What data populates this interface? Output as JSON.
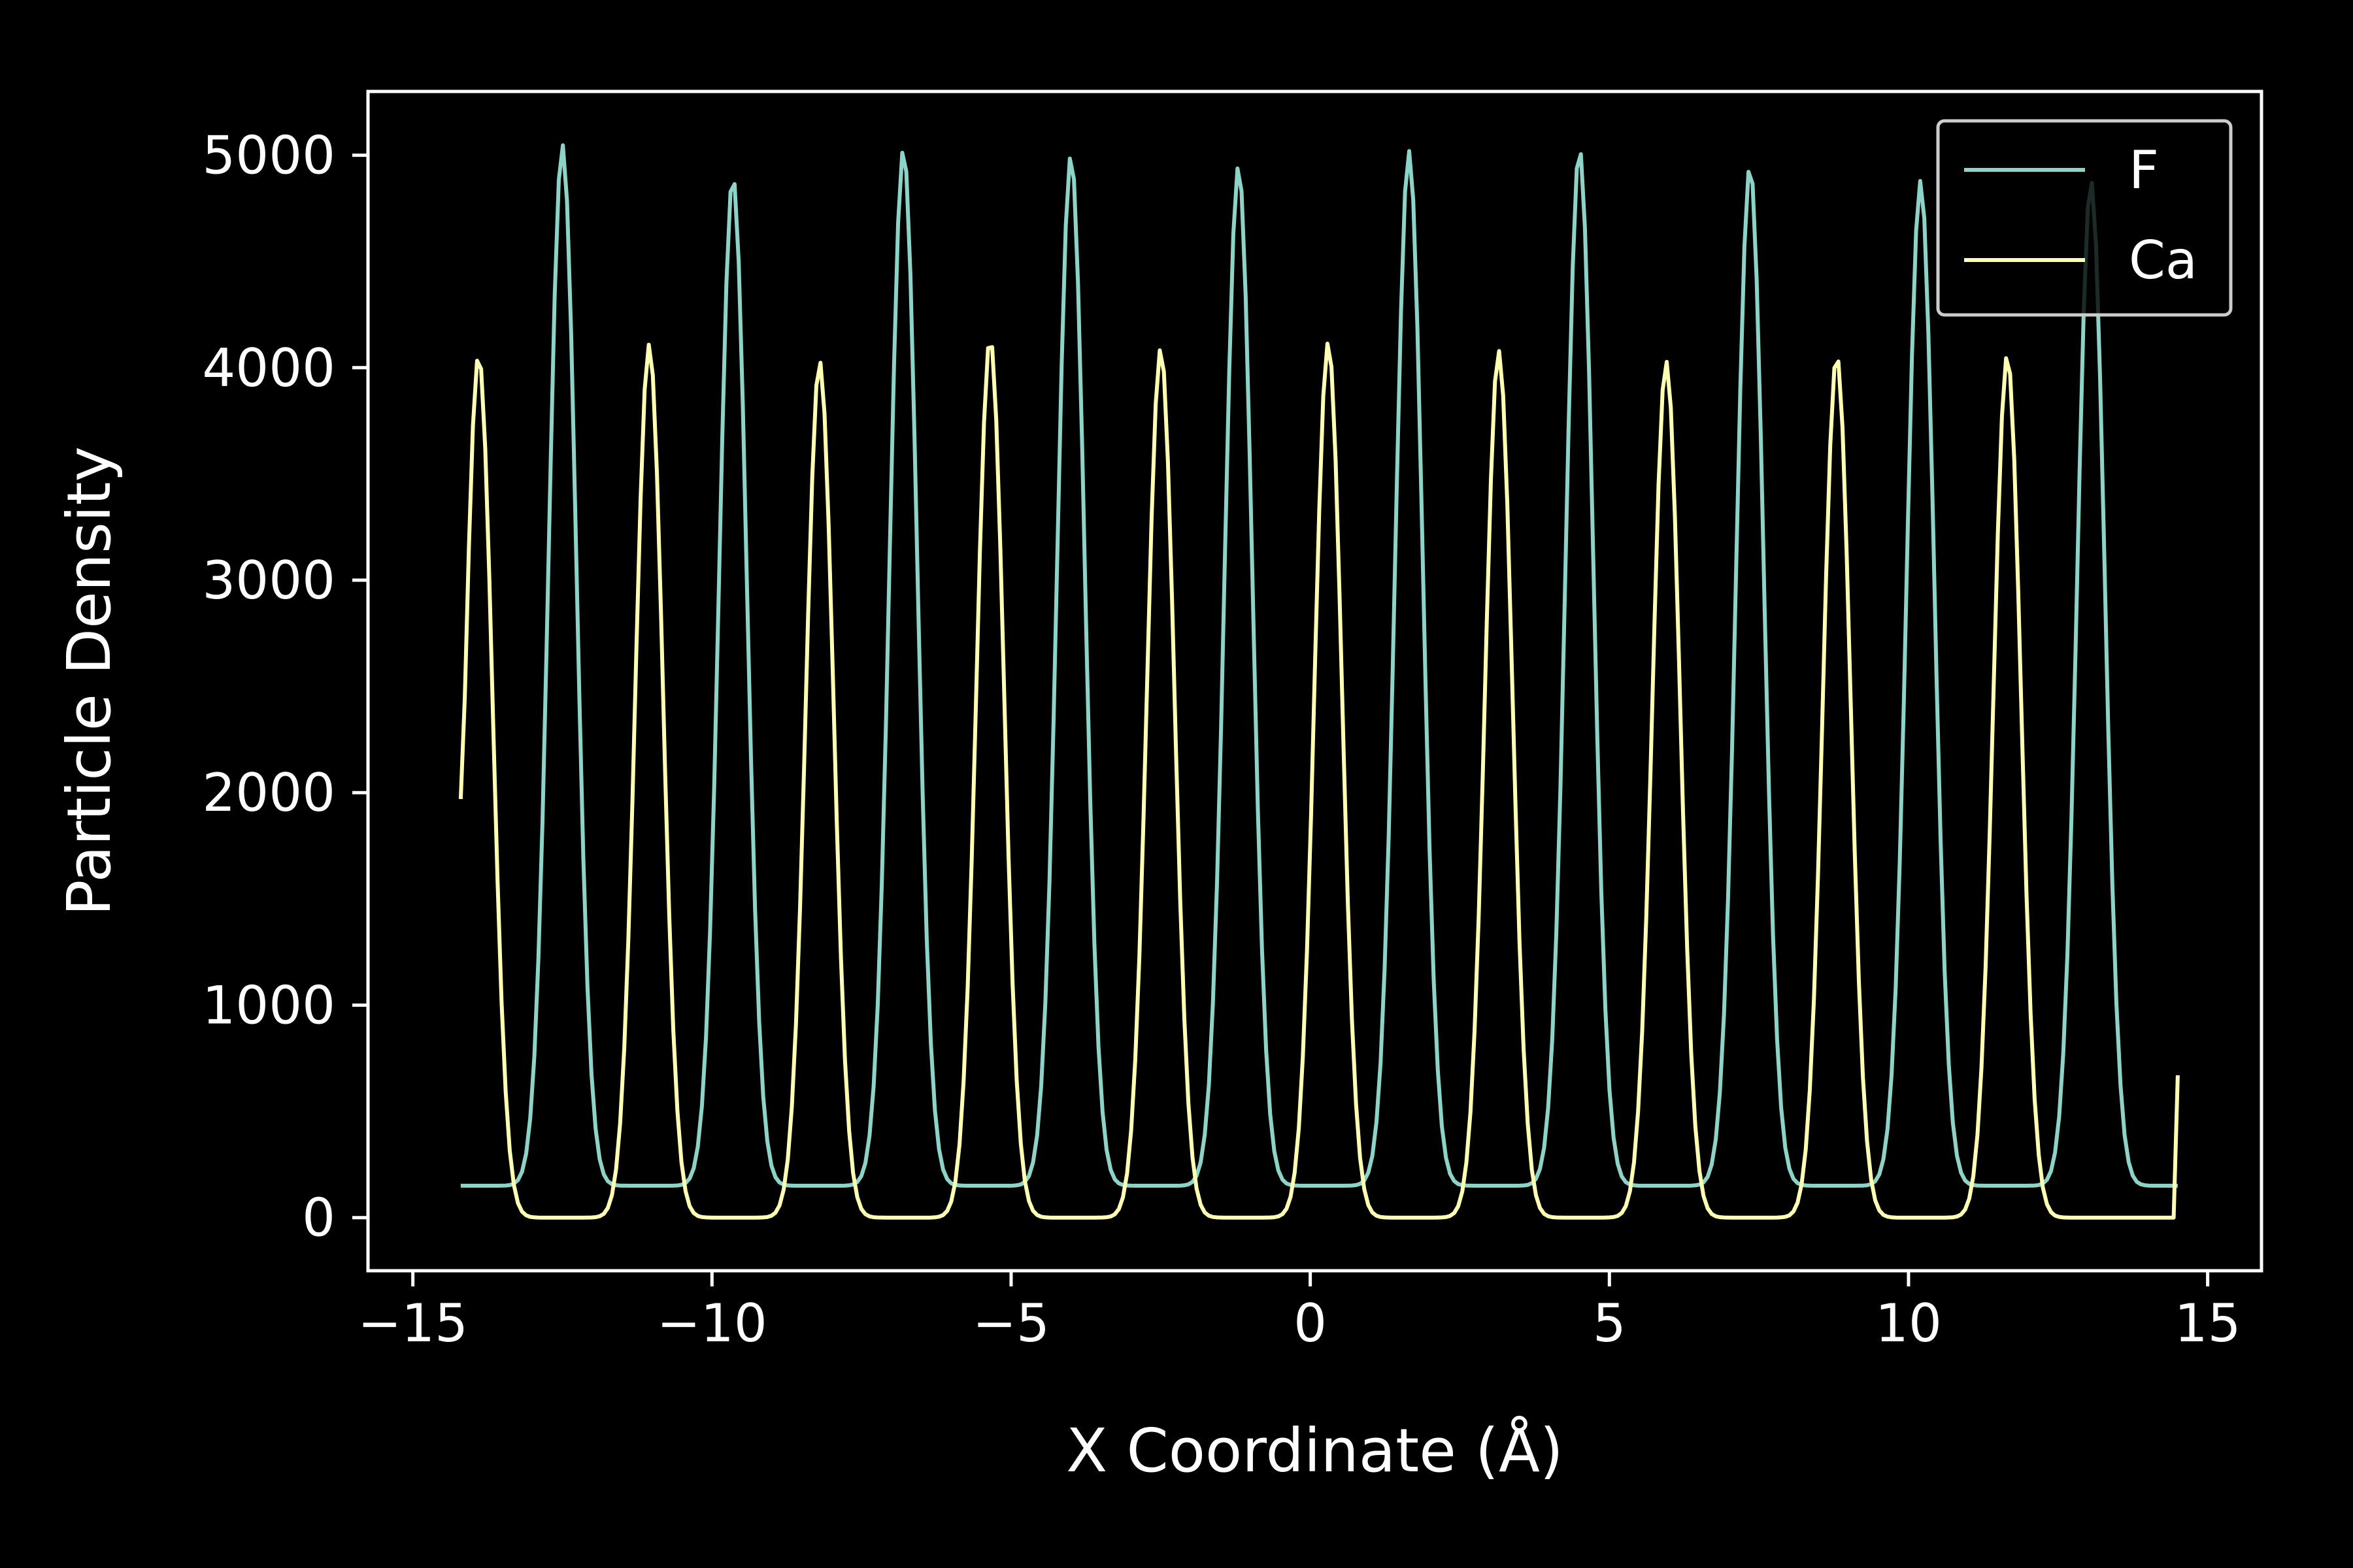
{
  "chart_data": {
    "type": "line",
    "xlabel": "X Coordinate (Å)",
    "ylabel": "Particle Density",
    "xlim": [
      -15.75,
      15.9
    ],
    "ylim": [
      -250,
      5300
    ],
    "xticks": [
      -15,
      -10,
      -5,
      0,
      5,
      10,
      15
    ],
    "xtick_labels": [
      "−15",
      "−10",
      "−5",
      "0",
      "5",
      "10",
      "15"
    ],
    "yticks": [
      0,
      1000,
      2000,
      3000,
      4000,
      5000
    ],
    "ytick_labels": [
      "0",
      "1000",
      "2000",
      "3000",
      "4000",
      "5000"
    ],
    "grid": false,
    "legend_position": "top-right",
    "x_range": [
      -14.2,
      14.5
    ],
    "series": [
      {
        "name": "F",
        "color": "#8dd3c7",
        "baseline": 150,
        "peaks": [
          {
            "x": -12.5,
            "y": 5050
          },
          {
            "x": -9.65,
            "y": 4900
          },
          {
            "x": -6.8,
            "y": 5030
          },
          {
            "x": -4.0,
            "y": 5000
          },
          {
            "x": -1.2,
            "y": 4950
          },
          {
            "x": 1.65,
            "y": 5020
          },
          {
            "x": 4.5,
            "y": 5030
          },
          {
            "x": 7.35,
            "y": 4950
          },
          {
            "x": 10.2,
            "y": 4880
          },
          {
            "x": 13.05,
            "y": 4880
          }
        ]
      },
      {
        "name": "Ca",
        "color": "#ffffb3",
        "baseline": 0,
        "peaks": [
          {
            "x": -13.9,
            "y": 4060
          },
          {
            "x": -11.05,
            "y": 4110
          },
          {
            "x": -8.2,
            "y": 4030
          },
          {
            "x": -5.35,
            "y": 4140
          },
          {
            "x": -2.5,
            "y": 4090
          },
          {
            "x": 0.3,
            "y": 4120
          },
          {
            "x": 3.15,
            "y": 4080
          },
          {
            "x": 5.95,
            "y": 4030
          },
          {
            "x": 8.8,
            "y": 4060
          },
          {
            "x": 11.65,
            "y": 4060
          }
        ],
        "end_points": {
          "start": 1970,
          "end": 670
        }
      }
    ]
  }
}
